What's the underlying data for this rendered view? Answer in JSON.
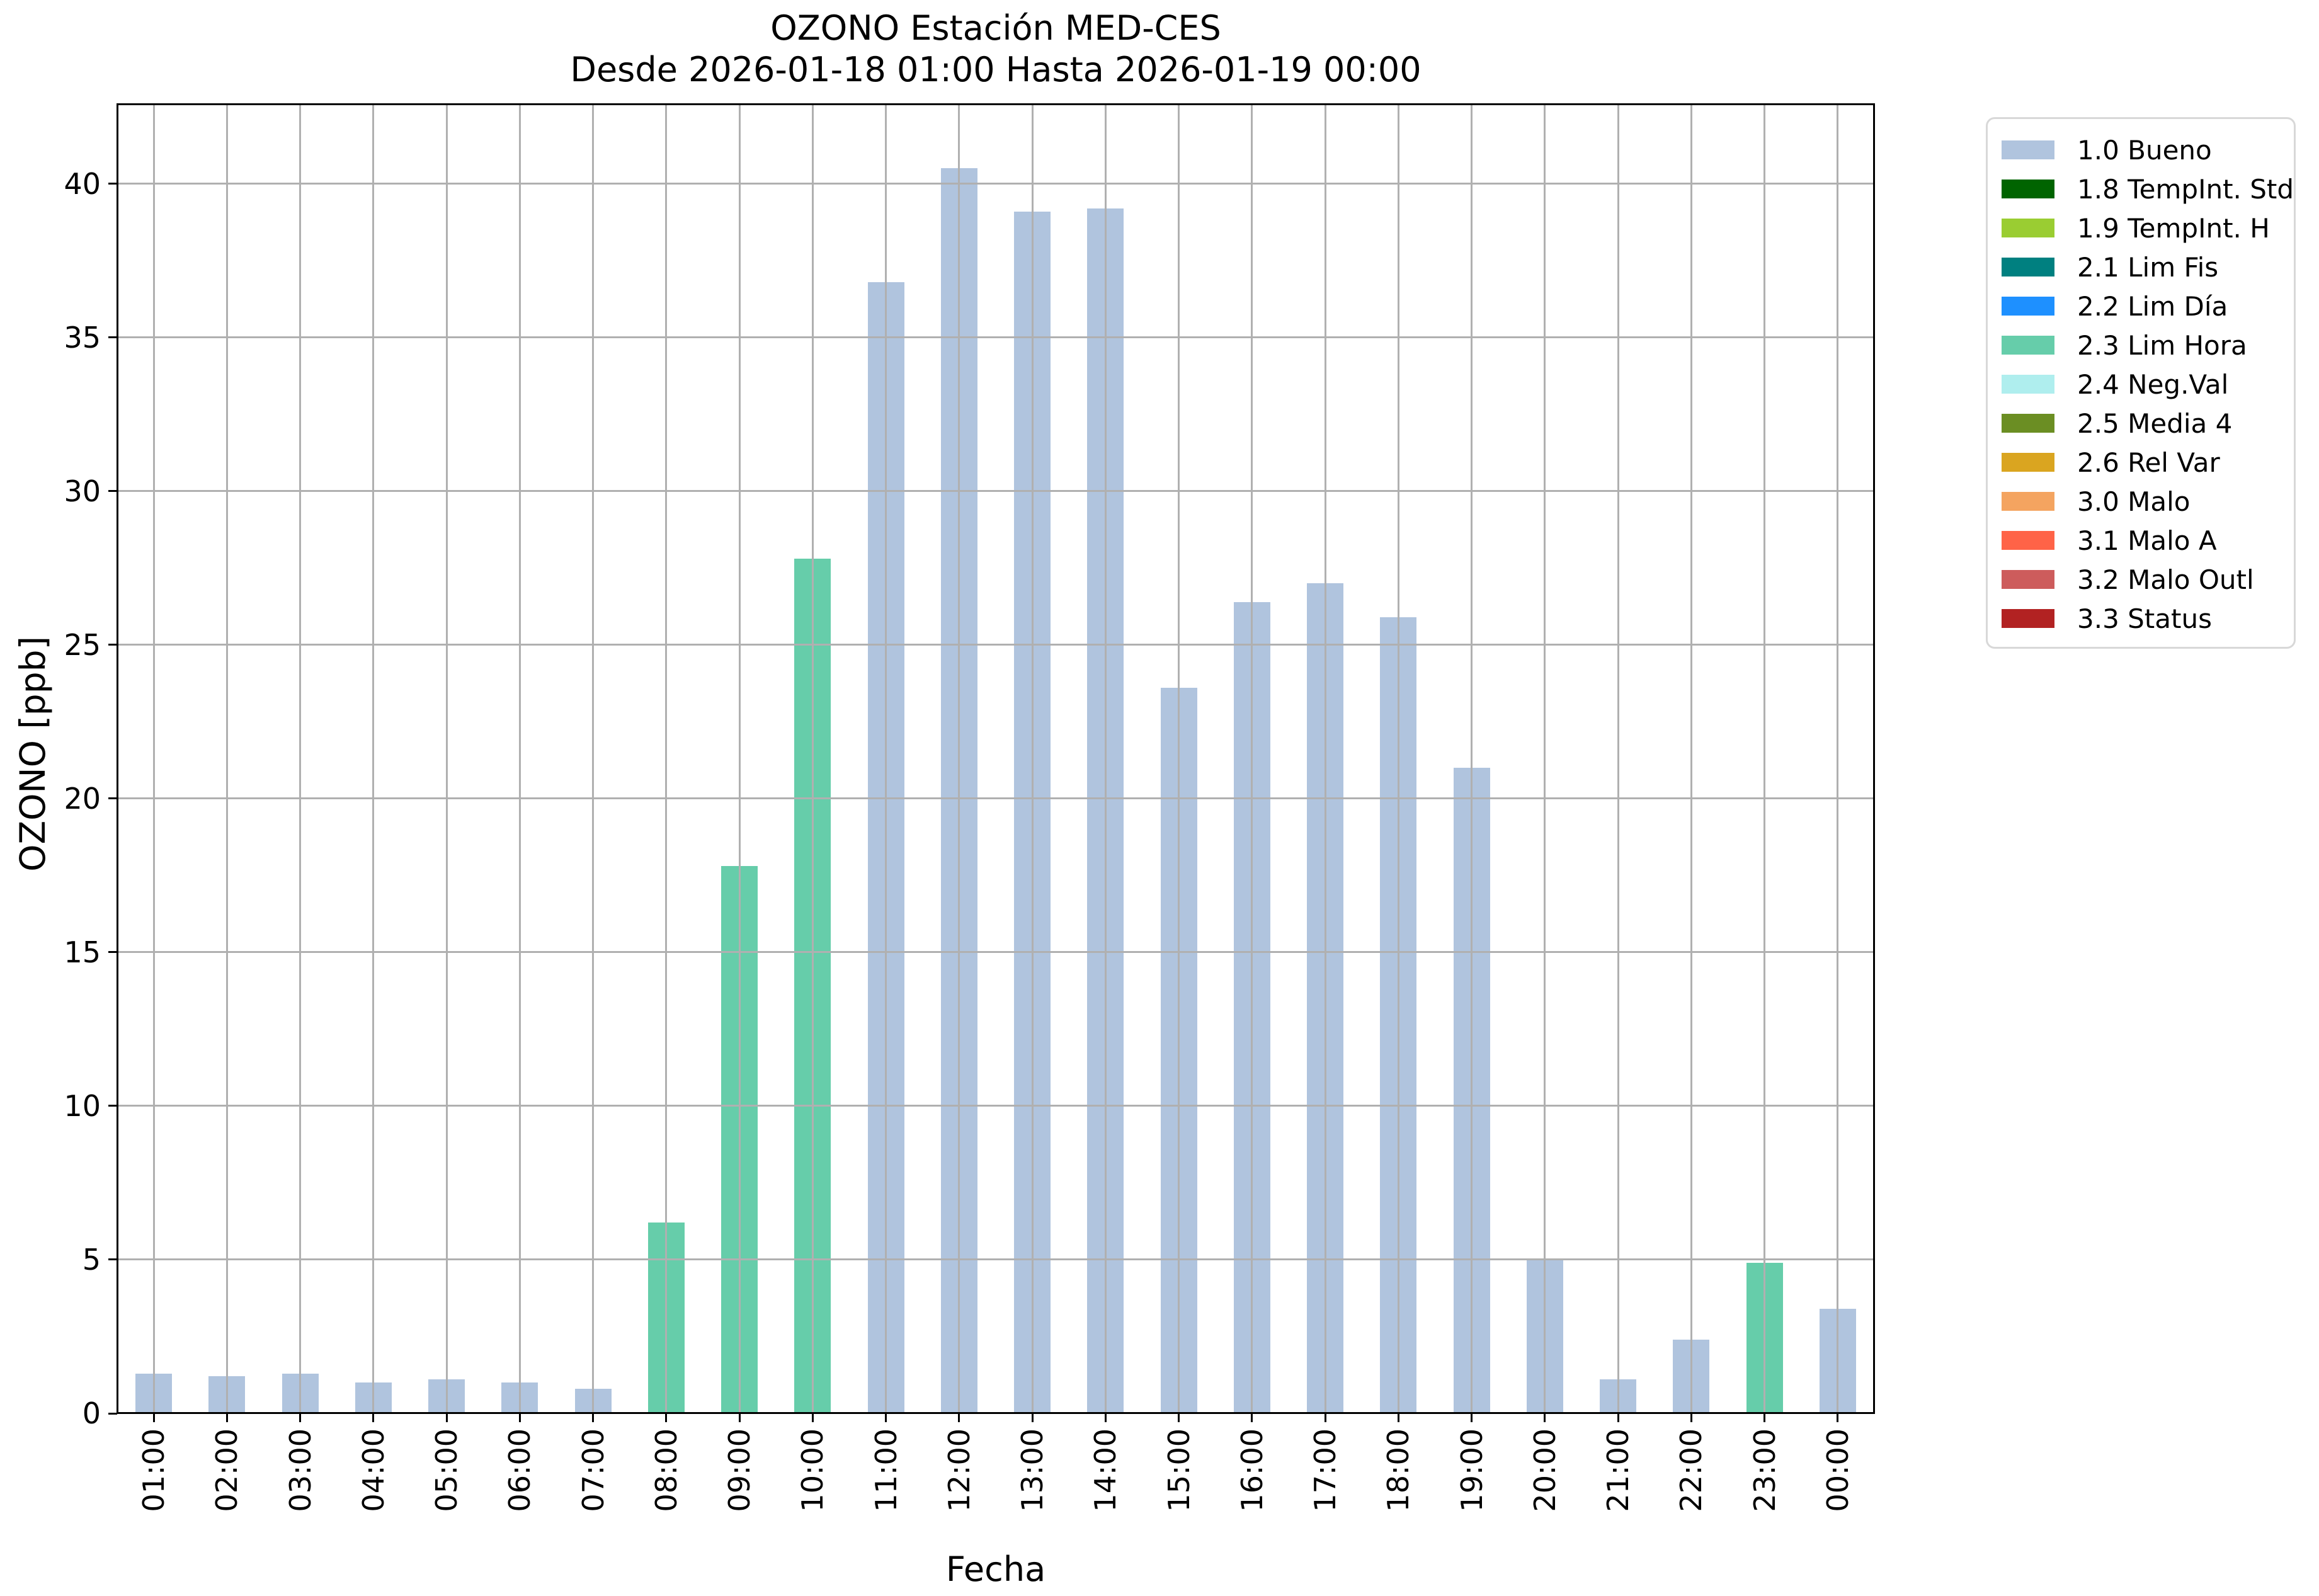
{
  "title": {
    "line1": "OZONO Estación MED-CES",
    "line2": "Desde 2026-01-18 01:00 Hasta 2026-01-19 00:00"
  },
  "chart_data": {
    "type": "bar",
    "title": "OZONO Estación MED-CES",
    "subtitle": "Desde 2026-01-18 01:00 Hasta 2026-01-19 00:00",
    "xlabel": "Fecha",
    "ylabel": "OZONO [ppb]",
    "categories": [
      "01:00",
      "02:00",
      "03:00",
      "04:00",
      "05:00",
      "06:00",
      "07:00",
      "08:00",
      "09:00",
      "10:00",
      "11:00",
      "12:00",
      "13:00",
      "14:00",
      "15:00",
      "16:00",
      "17:00",
      "18:00",
      "19:00",
      "20:00",
      "21:00",
      "22:00",
      "23:00",
      "00:00"
    ],
    "values": [
      1.3,
      1.2,
      1.3,
      1.0,
      1.1,
      1.0,
      0.8,
      6.2,
      17.8,
      27.8,
      36.8,
      40.5,
      39.1,
      39.2,
      23.6,
      26.4,
      27.0,
      25.9,
      21.0,
      5.0,
      1.1,
      2.4,
      4.9,
      3.4
    ],
    "flags": [
      "1.0 Bueno",
      "1.0 Bueno",
      "1.0 Bueno",
      "1.0 Bueno",
      "1.0 Bueno",
      "1.0 Bueno",
      "1.0 Bueno",
      "2.3 Lim Hora",
      "2.3 Lim Hora",
      "2.3 Lim Hora",
      "1.0 Bueno",
      "1.0 Bueno",
      "1.0 Bueno",
      "1.0 Bueno",
      "1.0 Bueno",
      "1.0 Bueno",
      "1.0 Bueno",
      "1.0 Bueno",
      "1.0 Bueno",
      "1.0 Bueno",
      "1.0 Bueno",
      "1.0 Bueno",
      "2.3 Lim Hora",
      "1.0 Bueno"
    ],
    "ylim": [
      0,
      42.6
    ],
    "yticks": [
      "0",
      "5",
      "10",
      "15",
      "20",
      "25",
      "30",
      "35",
      "40"
    ],
    "grid": true,
    "legend_position": "outside upper right"
  },
  "legend": {
    "items": [
      {
        "label": "1.0 Bueno",
        "color": "#b0c4de"
      },
      {
        "label": "1.8 TempInt. Std",
        "color": "#006400"
      },
      {
        "label": "1.9 TempInt. H",
        "color": "#9acd32"
      },
      {
        "label": "2.1 Lim Fis",
        "color": "#008080"
      },
      {
        "label": "2.2 Lim Día",
        "color": "#1e90ff"
      },
      {
        "label": "2.3 Lim Hora",
        "color": "#66cdaa"
      },
      {
        "label": "2.4 Neg.Val",
        "color": "#afeeee"
      },
      {
        "label": "2.5 Media 4",
        "color": "#6b8e23"
      },
      {
        "label": "2.6 Rel Var",
        "color": "#daa520"
      },
      {
        "label": "3.0 Malo",
        "color": "#f4a460"
      },
      {
        "label": "3.1 Malo A",
        "color": "#ff6347"
      },
      {
        "label": "3.2 Malo Outl",
        "color": "#cd5c5c"
      },
      {
        "label": "3.3 Status",
        "color": "#b22222"
      }
    ]
  },
  "colors": {
    "grid": "#b0b0b0",
    "spine": "#000000",
    "background": "#ffffff"
  }
}
